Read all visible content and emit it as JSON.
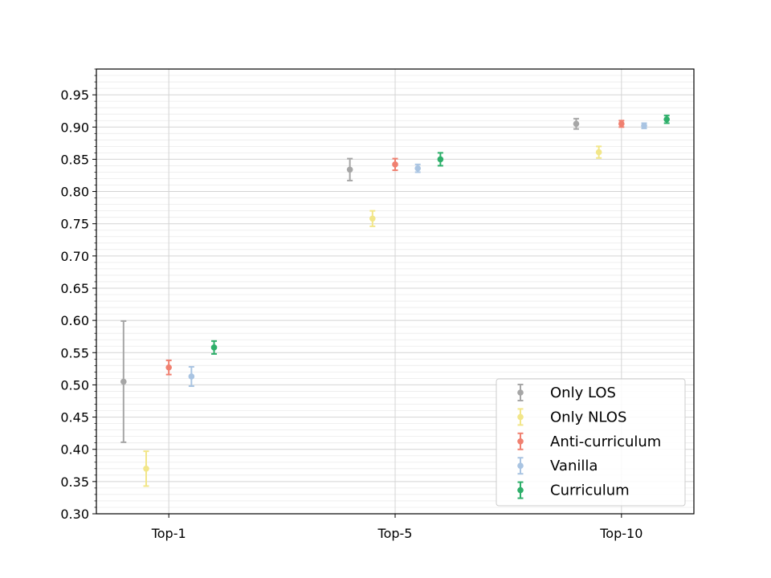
{
  "chart_data": {
    "type": "errorbar",
    "title": "",
    "xlabel": "",
    "ylabel": "",
    "categories": [
      "Top-1",
      "Top-5",
      "Top-10"
    ],
    "ylim": [
      0.3,
      0.99
    ],
    "y_ticks": [
      "0.30",
      "0.35",
      "0.40",
      "0.45",
      "0.50",
      "0.55",
      "0.60",
      "0.65",
      "0.70",
      "0.75",
      "0.80",
      "0.85",
      "0.90",
      "0.95"
    ],
    "grid": {
      "major": true,
      "minor": true
    },
    "legend_position": "lower-right",
    "series": [
      {
        "name": "Only LOS",
        "color": "#a6a6a6",
        "offset": -0.2,
        "values": [
          0.505,
          0.834,
          0.905
        ],
        "errors": [
          0.094,
          0.017,
          0.008
        ]
      },
      {
        "name": "Only NLOS",
        "color": "#f2e689",
        "offset": -0.1,
        "values": [
          0.37,
          0.758,
          0.861
        ],
        "errors": [
          0.027,
          0.012,
          0.009
        ]
      },
      {
        "name": "Anti-curriculum",
        "color": "#f08070",
        "offset": 0.0,
        "values": [
          0.527,
          0.842,
          0.905
        ],
        "errors": [
          0.011,
          0.009,
          0.005
        ]
      },
      {
        "name": "Vanilla",
        "color": "#a9c4e2",
        "offset": 0.1,
        "values": [
          0.513,
          0.836,
          0.902
        ],
        "errors": [
          0.015,
          0.006,
          0.004
        ]
      },
      {
        "name": "Curriculum",
        "color": "#2eaf6a",
        "offset": 0.2,
        "values": [
          0.558,
          0.85,
          0.912
        ],
        "errors": [
          0.01,
          0.01,
          0.006
        ]
      }
    ]
  }
}
